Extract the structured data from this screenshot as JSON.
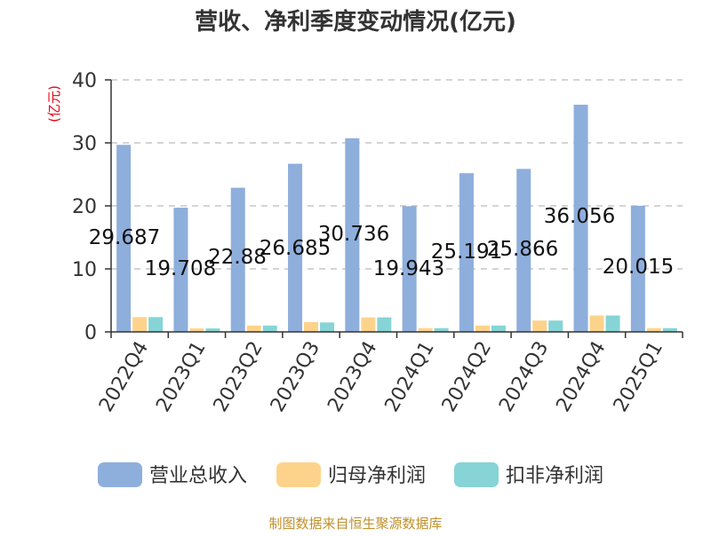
{
  "chart_data": {
    "type": "bar",
    "title": "营收、净利季度变动情况(亿元)",
    "ylabel": "(亿元)",
    "xlabel": "",
    "ylim": [
      0,
      40
    ],
    "yticks": [
      0,
      10,
      20,
      30,
      40
    ],
    "grid": true,
    "legend_position": "bottom",
    "categories": [
      "2022Q4",
      "2023Q1",
      "2023Q2",
      "2023Q3",
      "2023Q4",
      "2024Q1",
      "2024Q2",
      "2024Q3",
      "2024Q4",
      "2025Q1"
    ],
    "series": [
      {
        "name": "营业总收入",
        "color": "#8eaedc",
        "values": [
          29.687,
          19.708,
          22.88,
          26.685,
          30.736,
          19.943,
          25.191,
          25.866,
          36.056,
          20.015
        ]
      },
      {
        "name": "归母净利润",
        "color": "#fdd38c",
        "values": [
          2.35,
          0.55,
          1.0,
          1.55,
          2.3,
          0.6,
          1.0,
          1.8,
          2.6,
          0.6
        ]
      },
      {
        "name": "扣非净利润",
        "color": "#86d4d6",
        "values": [
          2.35,
          0.55,
          1.0,
          1.5,
          2.3,
          0.6,
          1.0,
          1.8,
          2.6,
          0.6
        ]
      }
    ],
    "data_labels": [
      "29.687",
      "19.708",
      "22.88",
      "26.685",
      "30.736",
      "19.943",
      "25.191",
      "25.866",
      "36.056",
      "20.015"
    ]
  },
  "footer": {
    "source": "制图数据来自恒生聚源数据库"
  },
  "colors": {
    "title": "#333333",
    "ylabel": "#e60012",
    "axis": "#333333",
    "grid": "#bbbbbb",
    "source": "#c0902c"
  }
}
